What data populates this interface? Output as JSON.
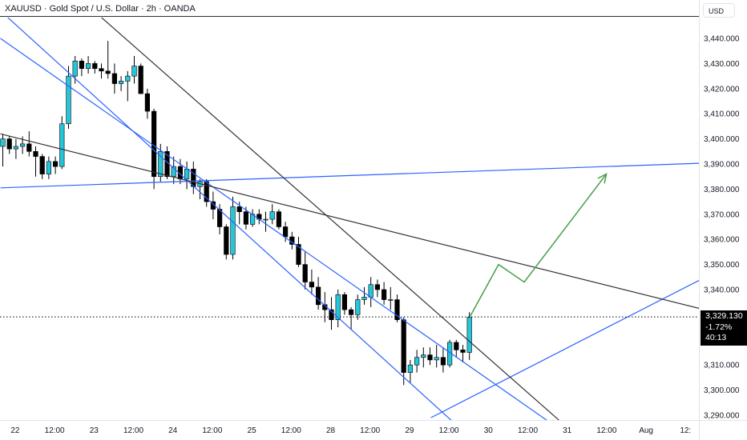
{
  "header": {
    "title": "XAUUSD · Gold Spot / U.S. Dollar · 2h · OANDA"
  },
  "price_axis": {
    "currency": "USD",
    "current_price": "3,329.130",
    "change": "-1.72%",
    "countdown": "40:13"
  },
  "colors": {
    "up": "#26c6da",
    "down": "#000000",
    "trend_blue": "#2962ff",
    "trend_black": "#333333",
    "projection": "#43a047"
  },
  "chart_data": {
    "type": "candlestick",
    "symbol": "XAUUSD",
    "interval": "2h",
    "ylim": [
      3285,
      3452
    ],
    "y_ticks": [
      3290,
      3300,
      3310,
      3320,
      3330,
      3340,
      3350,
      3360,
      3370,
      3380,
      3390,
      3400,
      3410,
      3420,
      3430,
      3440
    ],
    "y_tick_labels": [
      "3,290.000",
      "3,300.000",
      "3,310.000",
      "3,320.000",
      "3,330.000",
      "3,340.000",
      "3,350.000",
      "3,360.000",
      "3,370.000",
      "3,380.000",
      "3,390.000",
      "3,400.000",
      "3,410.000",
      "3,420.000",
      "3,430.000",
      "3,440.000"
    ],
    "x_tick_labels": [
      {
        "label": "22",
        "bar": 2
      },
      {
        "label": "12:00",
        "bar": 8
      },
      {
        "label": "23",
        "bar": 14
      },
      {
        "label": "12:00",
        "bar": 20
      },
      {
        "label": "24",
        "bar": 26
      },
      {
        "label": "12:00",
        "bar": 32
      },
      {
        "label": "25",
        "bar": 38
      },
      {
        "label": "12:00",
        "bar": 44
      },
      {
        "label": "28",
        "bar": 50
      },
      {
        "label": "12:00",
        "bar": 56
      },
      {
        "label": "29",
        "bar": 62
      },
      {
        "label": "12:00",
        "bar": 68
      },
      {
        "label": "30",
        "bar": 74
      },
      {
        "label": "12:00",
        "bar": 80
      },
      {
        "label": "31",
        "bar": 86
      },
      {
        "label": "12:00",
        "bar": 92
      },
      {
        "label": "Aug",
        "bar": 98
      },
      {
        "label": "12:",
        "bar": 104
      }
    ],
    "candles": [
      {
        "o": 3397,
        "h": 3402,
        "l": 3389,
        "c": 3400
      },
      {
        "o": 3400,
        "h": 3401,
        "l": 3394,
        "c": 3396
      },
      {
        "o": 3396,
        "h": 3400,
        "l": 3392,
        "c": 3397
      },
      {
        "o": 3397,
        "h": 3401,
        "l": 3394,
        "c": 3398
      },
      {
        "o": 3398,
        "h": 3403,
        "l": 3393,
        "c": 3395
      },
      {
        "o": 3395,
        "h": 3397,
        "l": 3385,
        "c": 3393
      },
      {
        "o": 3393,
        "h": 3394,
        "l": 3384,
        "c": 3386
      },
      {
        "o": 3386,
        "h": 3393,
        "l": 3384,
        "c": 3391
      },
      {
        "o": 3391,
        "h": 3393,
        "l": 3386,
        "c": 3389
      },
      {
        "o": 3389,
        "h": 3409,
        "l": 3388,
        "c": 3406
      },
      {
        "o": 3406,
        "h": 3429,
        "l": 3404,
        "c": 3425
      },
      {
        "o": 3425,
        "h": 3433,
        "l": 3422,
        "c": 3431
      },
      {
        "o": 3431,
        "h": 3432,
        "l": 3425,
        "c": 3428
      },
      {
        "o": 3428,
        "h": 3433,
        "l": 3426,
        "c": 3430
      },
      {
        "o": 3430,
        "h": 3431,
        "l": 3426,
        "c": 3428
      },
      {
        "o": 3428,
        "h": 3430,
        "l": 3424,
        "c": 3427
      },
      {
        "o": 3427,
        "h": 3439,
        "l": 3424,
        "c": 3426
      },
      {
        "o": 3426,
        "h": 3430,
        "l": 3418,
        "c": 3422
      },
      {
        "o": 3422,
        "h": 3425,
        "l": 3419,
        "c": 3423
      },
      {
        "o": 3423,
        "h": 3427,
        "l": 3415,
        "c": 3425
      },
      {
        "o": 3425,
        "h": 3433,
        "l": 3422,
        "c": 3429
      },
      {
        "o": 3429,
        "h": 3430,
        "l": 3418,
        "c": 3418
      },
      {
        "o": 3418,
        "h": 3420,
        "l": 3408,
        "c": 3411
      },
      {
        "o": 3411,
        "h": 3412,
        "l": 3380,
        "c": 3385
      },
      {
        "o": 3385,
        "h": 3398,
        "l": 3383,
        "c": 3395
      },
      {
        "o": 3395,
        "h": 3397,
        "l": 3384,
        "c": 3385
      },
      {
        "o": 3385,
        "h": 3393,
        "l": 3382,
        "c": 3389
      },
      {
        "o": 3389,
        "h": 3392,
        "l": 3382,
        "c": 3384
      },
      {
        "o": 3384,
        "h": 3391,
        "l": 3380,
        "c": 3388
      },
      {
        "o": 3388,
        "h": 3391,
        "l": 3378,
        "c": 3381
      },
      {
        "o": 3381,
        "h": 3384,
        "l": 3376,
        "c": 3383
      },
      {
        "o": 3383,
        "h": 3384,
        "l": 3373,
        "c": 3375
      },
      {
        "o": 3375,
        "h": 3379,
        "l": 3368,
        "c": 3372
      },
      {
        "o": 3372,
        "h": 3374,
        "l": 3362,
        "c": 3365
      },
      {
        "o": 3365,
        "h": 3366,
        "l": 3352,
        "c": 3354
      },
      {
        "o": 3354,
        "h": 3377,
        "l": 3352,
        "c": 3373
      },
      {
        "o": 3373,
        "h": 3375,
        "l": 3366,
        "c": 3371
      },
      {
        "o": 3371,
        "h": 3373,
        "l": 3364,
        "c": 3366
      },
      {
        "o": 3366,
        "h": 3372,
        "l": 3365,
        "c": 3370
      },
      {
        "o": 3370,
        "h": 3372,
        "l": 3366,
        "c": 3368
      },
      {
        "o": 3368,
        "h": 3371,
        "l": 3363,
        "c": 3368
      },
      {
        "o": 3368,
        "h": 3374,
        "l": 3366,
        "c": 3371
      },
      {
        "o": 3371,
        "h": 3372,
        "l": 3364,
        "c": 3365
      },
      {
        "o": 3365,
        "h": 3367,
        "l": 3359,
        "c": 3361
      },
      {
        "o": 3361,
        "h": 3363,
        "l": 3356,
        "c": 3358
      },
      {
        "o": 3358,
        "h": 3361,
        "l": 3349,
        "c": 3350
      },
      {
        "o": 3350,
        "h": 3355,
        "l": 3340,
        "c": 3343
      },
      {
        "o": 3343,
        "h": 3348,
        "l": 3338,
        "c": 3341
      },
      {
        "o": 3341,
        "h": 3345,
        "l": 3332,
        "c": 3334
      },
      {
        "o": 3334,
        "h": 3339,
        "l": 3327,
        "c": 3332
      },
      {
        "o": 3332,
        "h": 3337,
        "l": 3324,
        "c": 3328
      },
      {
        "o": 3328,
        "h": 3340,
        "l": 3325,
        "c": 3338
      },
      {
        "o": 3338,
        "h": 3339,
        "l": 3330,
        "c": 3332
      },
      {
        "o": 3332,
        "h": 3333,
        "l": 3324,
        "c": 3330
      },
      {
        "o": 3330,
        "h": 3338,
        "l": 3328,
        "c": 3336
      },
      {
        "o": 3336,
        "h": 3341,
        "l": 3334,
        "c": 3337
      },
      {
        "o": 3337,
        "h": 3345,
        "l": 3333,
        "c": 3342
      },
      {
        "o": 3342,
        "h": 3344,
        "l": 3337,
        "c": 3340
      },
      {
        "o": 3340,
        "h": 3343,
        "l": 3334,
        "c": 3336
      },
      {
        "o": 3336,
        "h": 3341,
        "l": 3332,
        "c": 3336
      },
      {
        "o": 3336,
        "h": 3338,
        "l": 3327,
        "c": 3328
      },
      {
        "o": 3328,
        "h": 3329,
        "l": 3302,
        "c": 3307
      },
      {
        "o": 3307,
        "h": 3312,
        "l": 3303,
        "c": 3310
      },
      {
        "o": 3310,
        "h": 3316,
        "l": 3307,
        "c": 3313
      },
      {
        "o": 3313,
        "h": 3317,
        "l": 3309,
        "c": 3314
      },
      {
        "o": 3314,
        "h": 3317,
        "l": 3310,
        "c": 3312
      },
      {
        "o": 3312,
        "h": 3318,
        "l": 3309,
        "c": 3313
      },
      {
        "o": 3313,
        "h": 3317,
        "l": 3307,
        "c": 3310
      },
      {
        "o": 3310,
        "h": 3320,
        "l": 3309,
        "c": 3319
      },
      {
        "o": 3319,
        "h": 3320,
        "l": 3313,
        "c": 3316
      },
      {
        "o": 3316,
        "h": 3318,
        "l": 3311,
        "c": 3315
      },
      {
        "o": 3315,
        "h": 3331,
        "l": 3312,
        "c": 3329
      }
    ],
    "drawings": [
      {
        "type": "trendline",
        "name": "descending-channel-upper",
        "color": "#2962ff",
        "points": [
          [
            0,
            3451
          ],
          [
            69,
            3287
          ]
        ]
      },
      {
        "type": "trendline",
        "name": "descending-channel-lower",
        "color": "#2962ff",
        "points": [
          [
            0,
            3440
          ],
          [
            87.5,
            3280
          ]
        ]
      },
      {
        "type": "trendline",
        "name": "upper-horizontal-resistance",
        "color": "#2962ff",
        "points": [
          [
            0,
            3380.5
          ],
          [
            114,
            3391
          ]
        ]
      },
      {
        "type": "trendline",
        "name": "rising-support",
        "color": "#2962ff",
        "points": [
          [
            65.5,
            3289
          ],
          [
            114,
            3354
          ]
        ]
      },
      {
        "type": "trendline",
        "name": "steep-descending-resistance",
        "color": "#333333",
        "points": [
          [
            14,
            3451.5
          ],
          [
            85,
            3288
          ]
        ]
      },
      {
        "type": "trendline",
        "name": "long-descending-resistance",
        "color": "#333333",
        "points": [
          [
            0,
            3402
          ],
          [
            114,
            3327.5
          ]
        ]
      },
      {
        "type": "projection",
        "name": "bullish-projection",
        "color": "#43a047",
        "points": [
          [
            71.5,
            3329.5
          ],
          [
            75.8,
            3350
          ],
          [
            79.7,
            3343
          ],
          [
            92.2,
            3386
          ]
        ]
      }
    ],
    "current_price": 3329.13
  }
}
